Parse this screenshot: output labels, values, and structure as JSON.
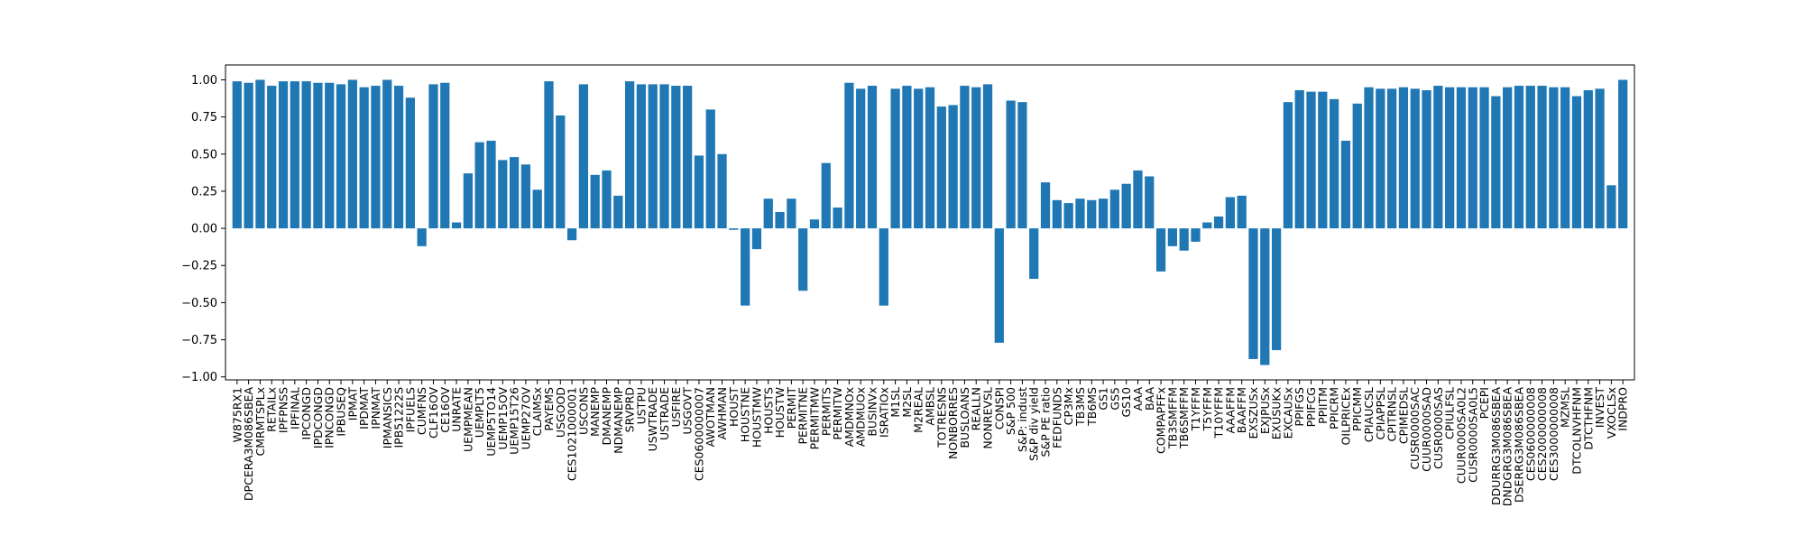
{
  "chart_data": {
    "type": "bar",
    "title": "",
    "xlabel": "",
    "ylabel": "",
    "ylim": [
      -1.02,
      1.1
    ],
    "yticks": [
      -1.0,
      -0.75,
      -0.5,
      -0.25,
      0.0,
      0.25,
      0.5,
      0.75,
      1.0
    ],
    "ytick_labels": [
      "−1.00",
      "−0.75",
      "−0.50",
      "−0.25",
      "0.00",
      "0.25",
      "0.50",
      "0.75",
      "1.00"
    ],
    "grid": false,
    "legend": "none",
    "bar_color": "#1f77b4",
    "categories": [
      "W875RX1",
      "DPCERA3M086SBEA",
      "CMRMTSPLx",
      "RETAILx",
      "IPFPNSS",
      "IPFINAL",
      "IPCONGD",
      "IPDCONGD",
      "IPNCONGD",
      "IPBUSEQ",
      "IPMAT",
      "IPDMAT",
      "IPNMAT",
      "IPMANSICS",
      "IPB51222S",
      "IPFUELS",
      "CUMFNS",
      "CLF16OV",
      "CE16OV",
      "UNRATE",
      "UEMPMEAN",
      "UEMPLT5",
      "UEMP5TO14",
      "UEMP15OV",
      "UEMP15T26",
      "UEMP27OV",
      "CLAIMSx",
      "PAYEMS",
      "USGOOD",
      "CES1021000001",
      "USCONS",
      "MANEMP",
      "DMANEMP",
      "NDMANEMP",
      "SRVPRD",
      "USTPU",
      "USWTRADE",
      "USTRADE",
      "USFIRE",
      "USGOVT",
      "CES0600000007",
      "AWOTMAN",
      "AWHMAN",
      "HOUST",
      "HOUSTNE",
      "HOUSTMW",
      "HOUSTS",
      "HOUSTW",
      "PERMIT",
      "PERMITNE",
      "PERMITMW",
      "PERMITS",
      "PERMITW",
      "AMDMNOx",
      "AMDMUOx",
      "BUSINVx",
      "ISRATIOx",
      "M1SL",
      "M2SL",
      "M2REAL",
      "AMBSL",
      "TOTRESNS",
      "NONBORRES",
      "BUSLOANS",
      "REALLN",
      "NONREVSL",
      "CONSPI",
      "S&P 500",
      "S&P: indust",
      "S&P div yield",
      "S&P PE ratio",
      "FEDFUNDS",
      "CP3Mx",
      "TB3MS",
      "TB6MS",
      "GS1",
      "GS5",
      "GS10",
      "AAA",
      "BAA",
      "COMPAPFFx",
      "TB3SMFFM",
      "TB6SMFFM",
      "T1YFFM",
      "T5YFFM",
      "T10YFFM",
      "AAAFFM",
      "BAAFFM",
      "EXSZUSx",
      "EXJPUSx",
      "EXUSUKx",
      "EXCAUSx",
      "PPIFGS",
      "PPIFCG",
      "PPIITM",
      "PPICRM",
      "OILPRICEx",
      "PPICMM",
      "CPIAUCSL",
      "CPIAPPSL",
      "CPITRNSL",
      "CPIMEDSL",
      "CUSR0000SAC",
      "CUUR0000SAD",
      "CUSR0000SAS",
      "CPIULFSL",
      "CUUR0000SA0L2",
      "CUSR0000SA0L5",
      "PCEPI",
      "DDURRG3M086SBEA",
      "DNDGRG3M086SBEA",
      "DSERRG3M086SBEA",
      "CES0600000008",
      "CES2000000008",
      "CES3000000008",
      "MZMSL",
      "DTCOLNVHFNM",
      "DTCTHFNM",
      "INVEST",
      "VXOCLSx",
      "INDPRO"
    ],
    "values": [
      0.99,
      0.98,
      1.0,
      0.96,
      0.99,
      0.99,
      0.99,
      0.98,
      0.98,
      0.97,
      1.0,
      0.95,
      0.96,
      1.0,
      0.96,
      0.88,
      -0.12,
      0.97,
      0.98,
      0.04,
      0.37,
      0.58,
      0.59,
      0.46,
      0.48,
      0.43,
      0.26,
      0.99,
      0.76,
      -0.08,
      0.97,
      0.36,
      0.39,
      0.22,
      0.99,
      0.97,
      0.97,
      0.97,
      0.96,
      0.96,
      0.49,
      0.8,
      0.5,
      -0.01,
      -0.52,
      -0.14,
      0.2,
      0.11,
      0.2,
      -0.42,
      0.06,
      0.44,
      0.14,
      0.98,
      0.94,
      0.96,
      -0.52,
      0.94,
      0.96,
      0.94,
      0.95,
      0.82,
      0.83,
      0.96,
      0.95,
      0.97,
      -0.77,
      0.86,
      0.85,
      -0.34,
      0.31,
      0.19,
      0.17,
      0.2,
      0.19,
      0.2,
      0.26,
      0.3,
      0.39,
      0.35,
      -0.29,
      -0.12,
      -0.15,
      -0.09,
      0.04,
      0.08,
      0.21,
      0.22,
      -0.88,
      -0.92,
      -0.82,
      0.85,
      0.93,
      0.92,
      0.92,
      0.87,
      0.59,
      0.84,
      0.95,
      0.94,
      0.94,
      0.95,
      0.94,
      0.93,
      0.96,
      0.95,
      0.95,
      0.95,
      0.95,
      0.89,
      0.95,
      0.96,
      0.96,
      0.96,
      0.95,
      0.95,
      0.89,
      0.93,
      0.94,
      0.29,
      1.0
    ]
  }
}
